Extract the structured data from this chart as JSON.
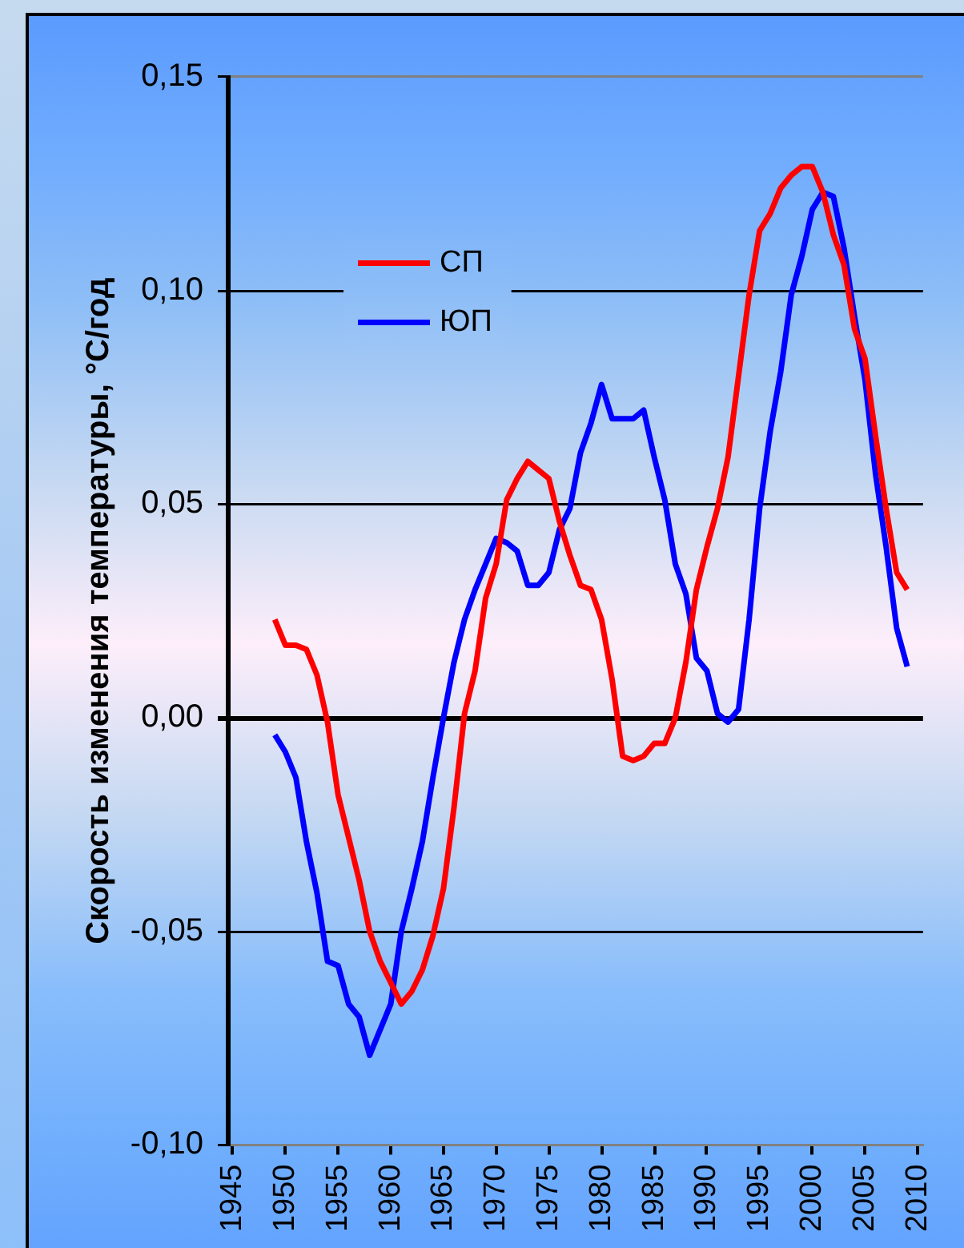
{
  "chart_data": {
    "type": "line",
    "ylabel": "Скорость изменения температуры, °С/год",
    "x": [
      1949,
      1950,
      1951,
      1952,
      1953,
      1954,
      1955,
      1956,
      1957,
      1958,
      1959,
      1960,
      1961,
      1962,
      1963,
      1964,
      1965,
      1966,
      1967,
      1968,
      1969,
      1970,
      1971,
      1972,
      1973,
      1974,
      1975,
      1976,
      1977,
      1978,
      1979,
      1980,
      1981,
      1982,
      1983,
      1984,
      1985,
      1986,
      1987,
      1988,
      1989,
      1990,
      1991,
      1992,
      1993,
      1994,
      1995,
      1996,
      1997,
      1998,
      1999,
      2000,
      2001,
      2002,
      2003,
      2004,
      2005,
      2006,
      2007,
      2008,
      2009
    ],
    "series": [
      {
        "name": "СП",
        "color": "#ff0000",
        "values": [
          0.023,
          0.017,
          0.017,
          0.016,
          0.01,
          -0.001,
          -0.018,
          -0.028,
          -0.038,
          -0.05,
          -0.057,
          -0.062,
          -0.067,
          -0.064,
          -0.059,
          -0.051,
          -0.04,
          -0.021,
          0.001,
          0.011,
          0.028,
          0.036,
          0.051,
          0.056,
          0.06,
          0.058,
          0.056,
          0.046,
          0.038,
          0.031,
          0.03,
          0.023,
          0.009,
          -0.009,
          -0.01,
          -0.009,
          -0.006,
          -0.006,
          0.0,
          0.013,
          0.03,
          0.04,
          0.049,
          0.061,
          0.08,
          0.099,
          0.114,
          0.118,
          0.124,
          0.127,
          0.129,
          0.129,
          0.123,
          0.113,
          0.106,
          0.091,
          0.084,
          0.066,
          0.049,
          0.034,
          0.03
        ]
      },
      {
        "name": "ЮП",
        "color": "#0000ff",
        "values": [
          -0.004,
          -0.008,
          -0.014,
          -0.029,
          -0.041,
          -0.057,
          -0.058,
          -0.067,
          -0.07,
          -0.079,
          -0.073,
          -0.067,
          -0.05,
          -0.04,
          -0.029,
          -0.014,
          0.0,
          0.013,
          0.023,
          0.03,
          0.036,
          0.042,
          0.041,
          0.039,
          0.031,
          0.031,
          0.034,
          0.044,
          0.049,
          0.062,
          0.069,
          0.078,
          0.07,
          0.07,
          0.07,
          0.072,
          0.061,
          0.051,
          0.036,
          0.029,
          0.014,
          0.011,
          0.001,
          -0.001,
          0.002,
          0.023,
          0.049,
          0.067,
          0.081,
          0.099,
          0.108,
          0.119,
          0.123,
          0.122,
          0.11,
          0.094,
          0.079,
          0.057,
          0.04,
          0.021,
          0.012
        ]
      }
    ],
    "xlim": [
      1944.5,
      2010.5
    ],
    "xticks": [
      1945,
      1950,
      1955,
      1960,
      1965,
      1970,
      1975,
      1980,
      1985,
      1990,
      1995,
      2000,
      2005,
      2010
    ],
    "ylim": [
      -0.1,
      0.15
    ],
    "yticks": [
      {
        "value": -0.1,
        "label": "-0,10"
      },
      {
        "value": -0.05,
        "label": "-0,05"
      },
      {
        "value": 0,
        "label": "0,00"
      },
      {
        "value": 0.05,
        "label": "0,05"
      },
      {
        "value": 0.1,
        "label": "0,10"
      },
      {
        "value": 0.15,
        "label": "0,15"
      }
    ],
    "grid": "y",
    "legend": "top left"
  }
}
